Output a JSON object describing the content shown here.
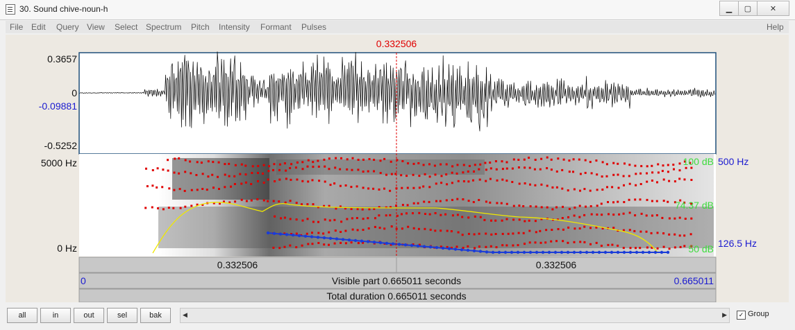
{
  "window": {
    "title": "30. Sound chive-noun-h",
    "minimize_icon": "minimize-icon",
    "maximize_icon": "maximize-icon",
    "close_icon": "close-icon"
  },
  "menu": {
    "items": [
      "File",
      "Edit",
      "Query",
      "View",
      "Select",
      "Spectrum",
      "Pitch",
      "Intensity",
      "Formant",
      "Pulses"
    ],
    "help": "Help"
  },
  "cursor": {
    "time": "0.332506",
    "color": "#e00000"
  },
  "waveform": {
    "max": "0.3657",
    "zero": "0",
    "cursor_value": "-0.09881",
    "min": "-0.5252"
  },
  "spectrogram": {
    "freq_top": "5000 Hz",
    "freq_bottom": "0 Hz",
    "intensity_top": "100 dB",
    "intensity_mid": "74.37 dB",
    "intensity_bottom": "50 dB",
    "pitch_top": "500 Hz",
    "pitch_bottom": "126.5 Hz",
    "formant_color": "#e00000",
    "intensity_color": "#f0e800",
    "pitch_color": "#1a3cd8"
  },
  "timebar": {
    "left_segment": "0.332506",
    "right_segment": "0.332506",
    "start": "0",
    "visible": "Visible part 0.665011 seconds",
    "end": "0.665011",
    "total": "Total duration 0.665011 seconds"
  },
  "toolbar": {
    "all": "all",
    "in": "in",
    "out": "out",
    "sel": "sel",
    "bak": "bak",
    "group_label": "Group",
    "group_checked": true
  }
}
